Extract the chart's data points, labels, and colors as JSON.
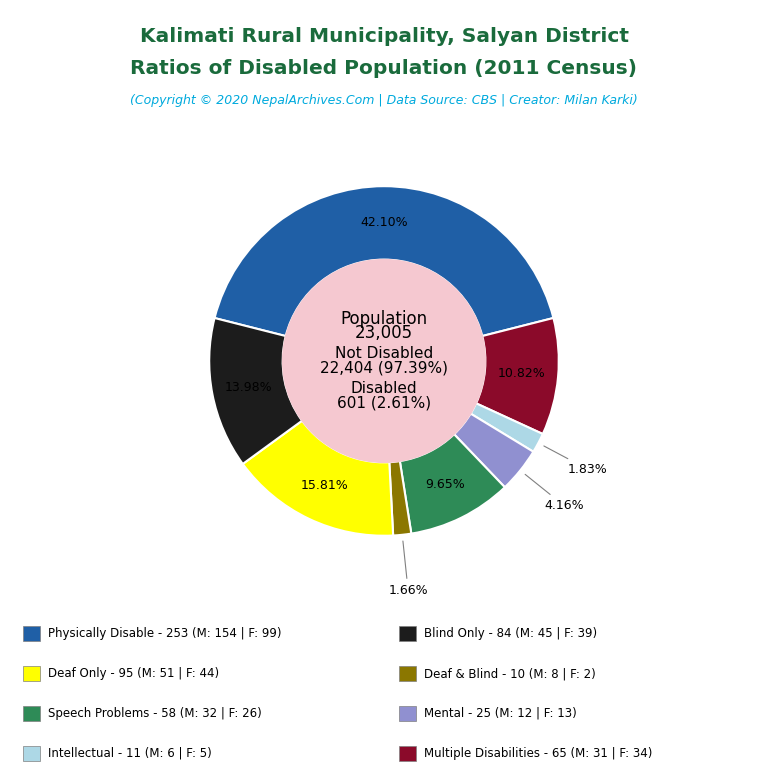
{
  "title_line1": "Kalimati Rural Municipality, Salyan District",
  "title_line2": "Ratios of Disabled Population (2011 Census)",
  "subtitle": "(Copyright © 2020 NepalArchives.Com | Data Source: CBS | Creator: Milan Karki)",
  "title_color": "#1a6b3c",
  "subtitle_color": "#00aadd",
  "center_bg": "#f5c8d0",
  "slices": [
    {
      "label": "Physically Disable - 253 (M: 154 | F: 99)",
      "value": 253,
      "pct": 42.1,
      "color": "#1f5fa6"
    },
    {
      "label": "Multiple Disabilities - 65 (M: 31 | F: 34)",
      "value": 65,
      "pct": 10.82,
      "color": "#8b0a2a"
    },
    {
      "label": "Intellectual - 11 (M: 6 | F: 5)",
      "value": 11,
      "pct": 1.83,
      "color": "#add8e6"
    },
    {
      "label": "Mental - 25 (M: 12 | F: 13)",
      "value": 25,
      "pct": 4.16,
      "color": "#9090d0"
    },
    {
      "label": "Speech Problems - 58 (M: 32 | F: 26)",
      "value": 58,
      "pct": 9.65,
      "color": "#2e8b57"
    },
    {
      "label": "Deaf & Blind - 10 (M: 8 | F: 2)",
      "value": 10,
      "pct": 1.66,
      "color": "#8b7700"
    },
    {
      "label": "Deaf Only - 95 (M: 51 | F: 44)",
      "value": 95,
      "pct": 15.81,
      "color": "#ffff00"
    },
    {
      "label": "Blind Only - 84 (M: 45 | F: 39)",
      "value": 84,
      "pct": 13.98,
      "color": "#1c1c1c"
    }
  ],
  "legend_order": [
    {
      "label": "Physically Disable - 253 (M: 154 | F: 99)",
      "color": "#1f5fa6"
    },
    {
      "label": "Deaf Only - 95 (M: 51 | F: 44)",
      "color": "#ffff00"
    },
    {
      "label": "Speech Problems - 58 (M: 32 | F: 26)",
      "color": "#2e8b57"
    },
    {
      "label": "Intellectual - 11 (M: 6 | F: 5)",
      "color": "#add8e6"
    },
    {
      "label": "Blind Only - 84 (M: 45 | F: 39)",
      "color": "#1c1c1c"
    },
    {
      "label": "Deaf & Blind - 10 (M: 8 | F: 2)",
      "color": "#8b7700"
    },
    {
      "label": "Mental - 25 (M: 12 | F: 13)",
      "color": "#9090d0"
    },
    {
      "label": "Multiple Disabilities - 65 (M: 31 | F: 34)",
      "color": "#8b0a2a"
    }
  ],
  "background_color": "#ffffff"
}
